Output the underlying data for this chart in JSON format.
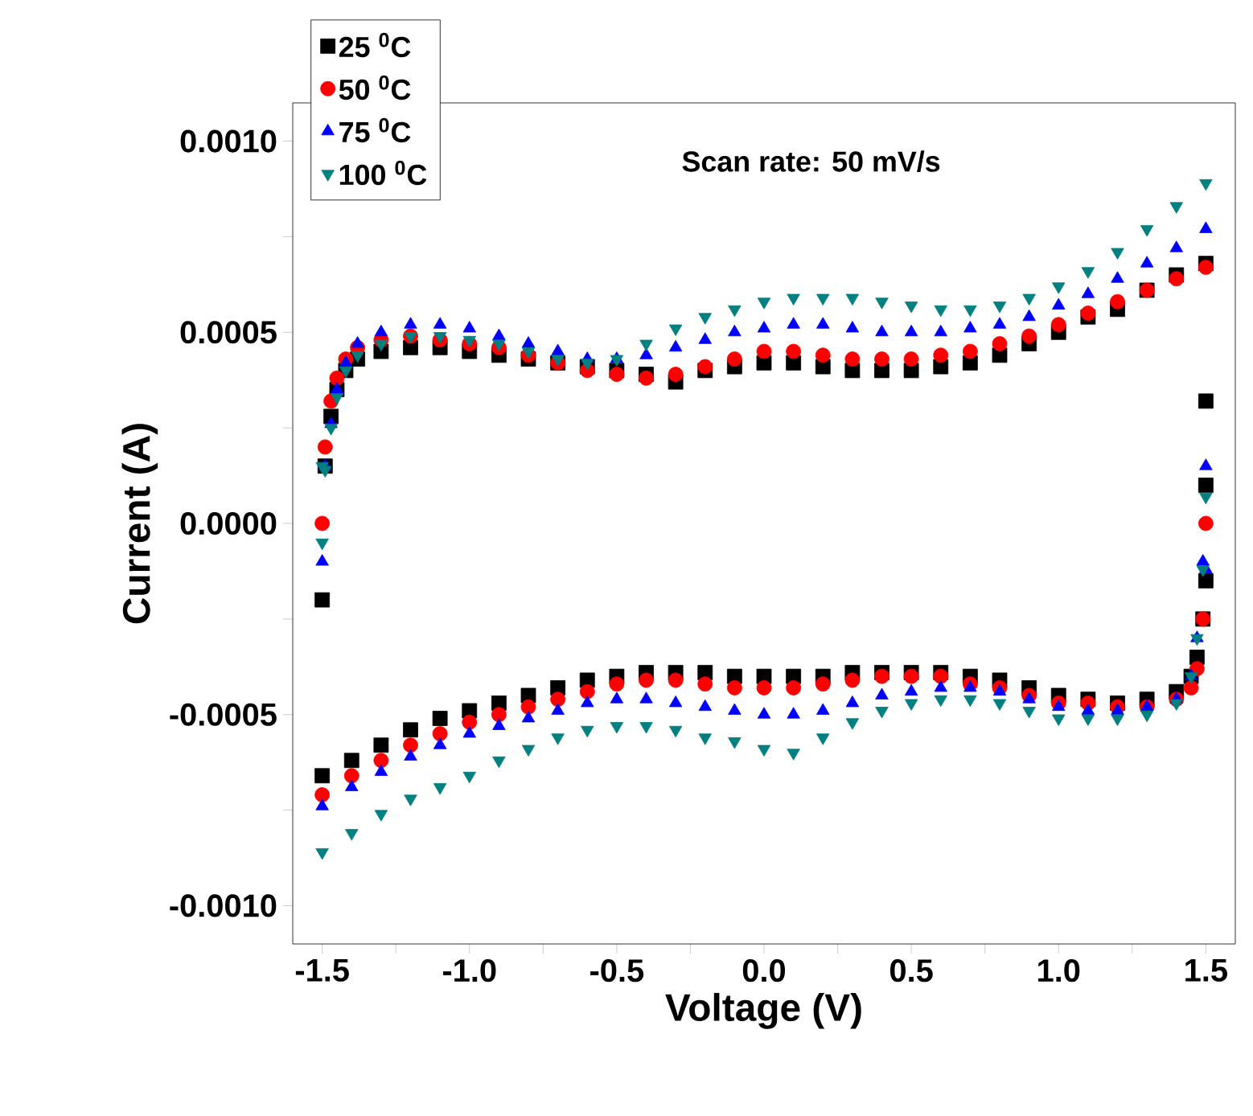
{
  "chart_data": {
    "type": "scatter",
    "xlabel": "Voltage (V)",
    "ylabel": "Current (A)",
    "annotations": [
      "Scan rate: 50 mV/s"
    ],
    "xlim": [
      -1.6,
      1.6
    ],
    "ylim": [
      -0.0011,
      0.0011
    ],
    "xticks": [
      -1.5,
      {
        "value": -1.25,
        "label": null
      },
      {
        "value": -1.0,
        "label": "-1.0"
      },
      {
        "value": -0.75,
        "label": null
      },
      -0.5,
      {
        "value": -0.25,
        "label": null
      },
      {
        "value": 0,
        "label": "0.0"
      },
      {
        "value": 0.25,
        "label": null
      },
      0.5,
      {
        "value": 0.75,
        "label": null
      },
      {
        "value": 1.0,
        "label": "1.0"
      },
      {
        "value": 1.25,
        "label": null
      },
      1.5
    ],
    "yticks": [
      {
        "value": -0.001,
        "label": "-0.0010"
      },
      {
        "value": -0.00075,
        "label": null
      },
      -0.0005,
      {
        "value": -0.00025,
        "label": null
      },
      {
        "value": 0,
        "label": "0.0000"
      },
      {
        "value": 0.00025,
        "label": null
      },
      0.0005,
      {
        "value": 0.00075,
        "label": null
      },
      {
        "value": 0.001,
        "label": "0.0010"
      }
    ],
    "legend": "top left",
    "grid": false,
    "x": [
      -1.5,
      -1.49,
      -1.47,
      -1.45,
      -1.42,
      -1.38,
      -1.3,
      -1.2,
      -1.1,
      -1.0,
      -0.9,
      -0.8,
      -0.7,
      -0.6,
      -0.5,
      -0.4,
      -0.3,
      -0.2,
      -0.1,
      0.0,
      0.1,
      0.2,
      0.3,
      0.4,
      0.5,
      0.6,
      0.7,
      0.8,
      0.9,
      1.0,
      1.1,
      1.2,
      1.3,
      1.4,
      1.5,
      1.5,
      1.49,
      1.47,
      1.45,
      1.4,
      1.3,
      1.2,
      1.1,
      1.0,
      0.9,
      0.8,
      0.7,
      0.6,
      0.5,
      0.4,
      0.3,
      0.2,
      0.1,
      0.0,
      -0.1,
      -0.2,
      -0.3,
      -0.4,
      -0.5,
      -0.6,
      -0.7,
      -0.8,
      -0.9,
      -1.0,
      -1.1,
      -1.2,
      -1.3,
      -1.4,
      -1.5,
      -1.5,
      1.5,
      1.5
    ],
    "series": [
      {
        "name": "25 $^{0}$C",
        "color": "#000000",
        "marker": "square",
        "values": [
          null,
          0.00015,
          0.00028,
          0.00035,
          0.0004,
          0.00043,
          0.00045,
          0.00046,
          0.00046,
          0.00045,
          0.00044,
          0.00043,
          0.00042,
          0.00041,
          0.0004,
          0.00039,
          0.00037,
          0.0004,
          0.00041,
          0.00042,
          0.00042,
          0.00041,
          0.0004,
          0.0004,
          0.0004,
          0.00041,
          0.00042,
          0.00044,
          0.00047,
          0.0005,
          0.00054,
          0.00056,
          0.00061,
          0.00065,
          0.00068,
          -0.00015,
          -0.00025,
          -0.00035,
          -0.0004,
          -0.00044,
          -0.00046,
          -0.00047,
          -0.00046,
          -0.00045,
          -0.00043,
          -0.00041,
          -0.0004,
          -0.00039,
          -0.00039,
          -0.00039,
          -0.00039,
          -0.0004,
          -0.0004,
          -0.0004,
          -0.0004,
          -0.00039,
          -0.00039,
          -0.00039,
          -0.0004,
          -0.00041,
          -0.00043,
          -0.00045,
          -0.00047,
          -0.00049,
          -0.00051,
          -0.00054,
          -0.00058,
          -0.00062,
          -0.00066,
          -0.0002,
          0.00032,
          0.0001
        ]
      },
      {
        "name": "50 $^{0}$C",
        "color": "#ff0000",
        "marker": "circle",
        "values": [
          0.0,
          0.0002,
          0.00032,
          0.00038,
          0.00043,
          0.00046,
          0.00048,
          0.00049,
          0.00048,
          0.00047,
          0.00046,
          0.00044,
          0.00042,
          0.0004,
          0.00039,
          0.00038,
          0.00039,
          0.00041,
          0.00043,
          0.00045,
          0.00045,
          0.00044,
          0.00043,
          0.00043,
          0.00043,
          0.00044,
          0.00045,
          0.00047,
          0.00049,
          0.00052,
          0.00055,
          0.00058,
          0.00061,
          0.00064,
          0.00067,
          0.0,
          -0.00025,
          -0.00038,
          -0.00043,
          -0.00046,
          -0.00048,
          -0.00048,
          -0.00047,
          -0.00047,
          -0.00045,
          -0.00043,
          -0.00042,
          -0.0004,
          -0.0004,
          -0.0004,
          -0.00041,
          -0.00042,
          -0.00043,
          -0.00043,
          -0.00043,
          -0.00042,
          -0.00041,
          -0.00041,
          -0.00042,
          -0.00044,
          -0.00046,
          -0.00048,
          -0.0005,
          -0.00052,
          -0.00055,
          -0.00058,
          -0.00062,
          -0.00066,
          -0.00071,
          null,
          null,
          null
        ]
      },
      {
        "name": "75 $^{0}$C",
        "color": "#0000ff",
        "marker": "triangle",
        "values": [
          -0.0001,
          0.00015,
          0.00026,
          0.00035,
          0.00042,
          0.00047,
          0.0005,
          0.00052,
          0.00052,
          0.00051,
          0.00049,
          0.00047,
          0.00045,
          0.00043,
          0.00043,
          0.00044,
          0.00046,
          0.00048,
          0.0005,
          0.00051,
          0.00052,
          0.00052,
          0.00051,
          0.0005,
          0.0005,
          0.0005,
          0.00051,
          0.00052,
          0.00054,
          0.00057,
          0.0006,
          0.00064,
          0.00068,
          0.00072,
          0.00077,
          0.00015,
          -0.0001,
          -0.0003,
          -0.0004,
          -0.00046,
          -0.00048,
          -0.00049,
          -0.00049,
          -0.00048,
          -0.00046,
          -0.00044,
          -0.00043,
          -0.00043,
          -0.00044,
          -0.00045,
          -0.00047,
          -0.00049,
          -0.0005,
          -0.0005,
          -0.00049,
          -0.00048,
          -0.00047,
          -0.00046,
          -0.00046,
          -0.00047,
          -0.00049,
          -0.00051,
          -0.00053,
          -0.00055,
          -0.00058,
          -0.00061,
          -0.00065,
          -0.00069,
          -0.00074,
          null,
          -0.00012,
          null
        ]
      },
      {
        "name": "100 $^{0}$C",
        "color": "#008080",
        "marker": "triangle down",
        "values": [
          -5e-05,
          0.00014,
          0.00025,
          0.00033,
          0.0004,
          0.00044,
          0.00047,
          0.00049,
          0.00049,
          0.00048,
          0.00047,
          0.00045,
          0.00043,
          0.00042,
          0.00043,
          0.00047,
          0.00051,
          0.00054,
          0.00056,
          0.00058,
          0.00059,
          0.00059,
          0.00059,
          0.00058,
          0.00057,
          0.00056,
          0.00056,
          0.00057,
          0.00059,
          0.00062,
          0.00066,
          0.00071,
          0.00077,
          0.00083,
          0.00089,
          7e-05,
          -0.00012,
          -0.0003,
          -0.0004,
          -0.00047,
          -0.0005,
          -0.00051,
          -0.00051,
          -0.00051,
          -0.00049,
          -0.00047,
          -0.00046,
          -0.00046,
          -0.00047,
          -0.00049,
          -0.00052,
          -0.00056,
          -0.0006,
          -0.00059,
          -0.00057,
          -0.00056,
          -0.00054,
          -0.00053,
          -0.00053,
          -0.00054,
          -0.00056,
          -0.00059,
          -0.00062,
          -0.00066,
          -0.00069,
          -0.00072,
          -0.00076,
          -0.00081,
          -0.00086,
          0.00015,
          null,
          null
        ]
      }
    ]
  }
}
